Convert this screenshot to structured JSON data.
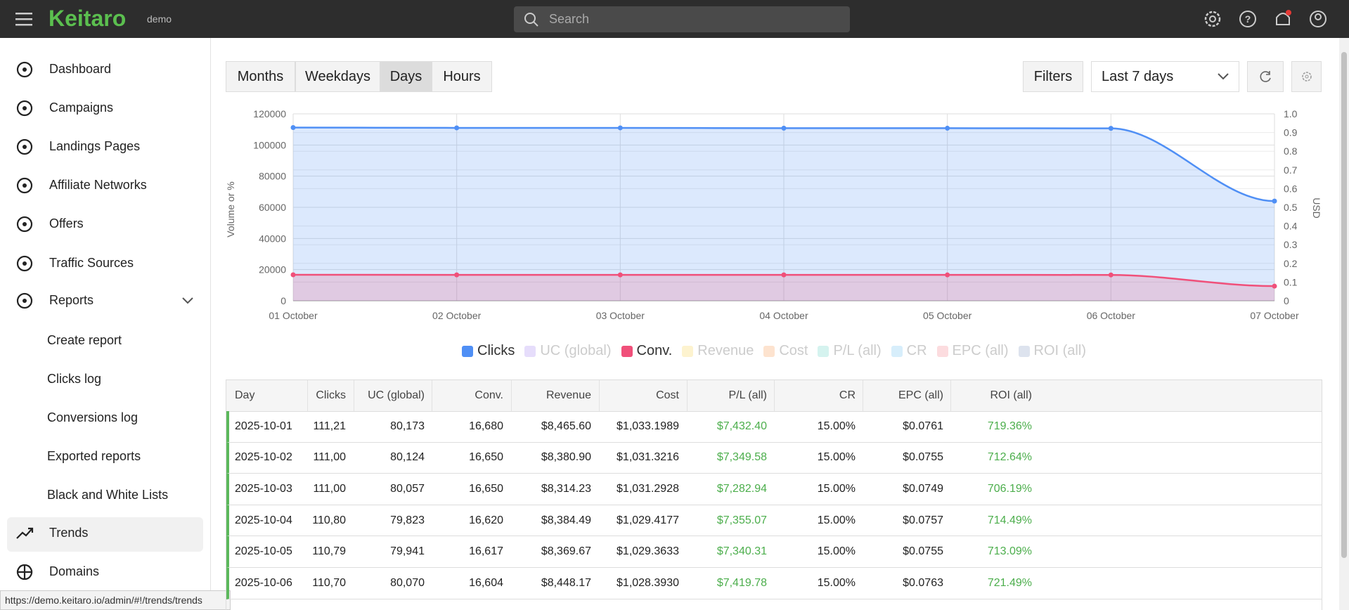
{
  "header": {
    "logo": "Keitaro",
    "badge": "demo",
    "search_placeholder": "Search"
  },
  "sidebar": {
    "items": [
      "Dashboard",
      "Campaigns",
      "Landings Pages",
      "Affiliate Networks",
      "Offers",
      "Traffic Sources",
      "Reports"
    ],
    "sub_items": [
      "Create report",
      "Clicks log",
      "Conversions log",
      "Exported reports",
      "Black and White Lists"
    ],
    "bottom_items": [
      "Trends",
      "Domains"
    ]
  },
  "toolbar": {
    "tabs": [
      "Months",
      "Weekdays",
      "Days",
      "Hours"
    ],
    "active_tab": "Days",
    "filters": "Filters",
    "period": "Last 7 days"
  },
  "chart_data": {
    "type": "area",
    "y_label": "Volume or %",
    "y2_label": "USD",
    "categories": [
      "01 October",
      "02 October",
      "03 October",
      "04 October",
      "05 October",
      "06 October",
      "07 October"
    ],
    "series": [
      {
        "name": "Clicks",
        "color": "#4f8ff5",
        "values": [
          111210,
          111000,
          111000,
          110800,
          110790,
          110700,
          64000
        ]
      },
      {
        "name": "Conv.",
        "color": "#f0507a",
        "values": [
          16680,
          16650,
          16650,
          16620,
          16617,
          16604,
          9400
        ]
      }
    ],
    "hidden_series": [
      {
        "name": "UC (global)",
        "color": "#e6ddfb"
      },
      {
        "name": "Revenue",
        "color": "#fdf3cf"
      },
      {
        "name": "Cost",
        "color": "#fde3cf"
      },
      {
        "name": "P/L (all)",
        "color": "#d5f3ef"
      },
      {
        "name": "CR",
        "color": "#d7eefb"
      },
      {
        "name": "EPC (all)",
        "color": "#fcdcdf"
      },
      {
        "name": "ROI (all)",
        "color": "#dde3ee"
      }
    ],
    "ylim": [
      0,
      120000
    ],
    "yticks": [
      0,
      20000,
      40000,
      60000,
      80000,
      100000,
      120000
    ],
    "y2lim": [
      0,
      1
    ],
    "y2ticks": [
      0,
      0.1,
      0.2,
      0.3,
      0.4,
      0.5,
      0.6,
      0.7,
      0.8,
      0.9,
      {
        "value": 1,
        "label": "1.0"
      }
    ],
    "grid": true
  },
  "table": {
    "headers": [
      "Day",
      "Clicks",
      "UC (global)",
      "Conv.",
      "Revenue",
      "Cost",
      "P/L (all)",
      "CR",
      "EPC (all)",
      "ROI (all)"
    ],
    "rows": [
      [
        "2025-10-01",
        "111,21",
        "80,173",
        "16,680",
        "$8,465.60",
        "$1,033.1989",
        "$7,432.40",
        "15.00%",
        "$0.0761",
        "719.36%"
      ],
      [
        "2025-10-02",
        "111,00",
        "80,124",
        "16,650",
        "$8,380.90",
        "$1,031.3216",
        "$7,349.58",
        "15.00%",
        "$0.0755",
        "712.64%"
      ],
      [
        "2025-10-03",
        "111,00",
        "80,057",
        "16,650",
        "$8,314.23",
        "$1,031.2928",
        "$7,282.94",
        "15.00%",
        "$0.0749",
        "706.19%"
      ],
      [
        "2025-10-04",
        "110,80",
        "79,823",
        "16,620",
        "$8,384.49",
        "$1,029.4177",
        "$7,355.07",
        "15.00%",
        "$0.0757",
        "714.49%"
      ],
      [
        "2025-10-05",
        "110,79",
        "79,941",
        "16,617",
        "$8,369.67",
        "$1,029.3633",
        "$7,340.31",
        "15.00%",
        "$0.0755",
        "713.09%"
      ],
      [
        "2025-10-06",
        "110,70",
        "80,070",
        "16,604",
        "$8,448.17",
        "$1,028.3930",
        "$7,419.78",
        "15.00%",
        "$0.0763",
        "721.49%"
      ]
    ]
  },
  "status_url": "https://demo.keitaro.io/admin/#!/trends/trends"
}
